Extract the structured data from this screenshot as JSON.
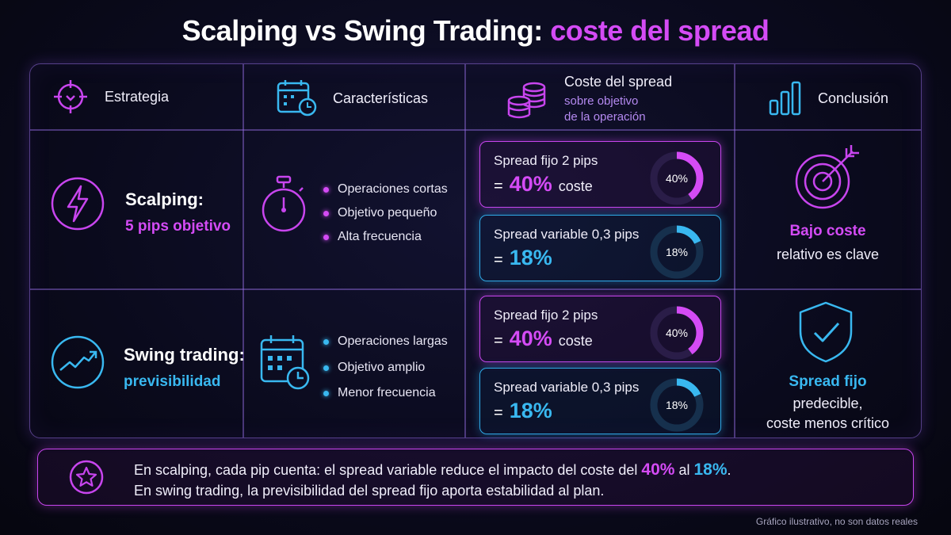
{
  "title": {
    "main": "Scalping vs Swing Trading:",
    "accent": "coste del spread"
  },
  "headers": {
    "strategy": "Estrategia",
    "features": "Características",
    "cost": "Coste del spread",
    "cost_sub1": "sobre objetivo",
    "cost_sub2": "de la operación",
    "conclusion": "Conclusión"
  },
  "rows": [
    {
      "title": "Scalping:",
      "subtitle": "5 pips objetivo",
      "bullets": [
        "Operaciones cortas",
        "Objetivo pequeño",
        "Alta frecuencia"
      ],
      "fixed": {
        "label": "Spread fijo 2 pips",
        "eq": "=",
        "value": "40%",
        "suffix": "coste",
        "donut": "40%",
        "pct": 0.4
      },
      "variable": {
        "label": "Spread variable 0,3 pips",
        "eq": "=",
        "value": "18%",
        "donut": "18%",
        "pct": 0.18
      },
      "conclusion_title": "Bajo coste",
      "conclusion_lines": [
        "relativo es clave"
      ]
    },
    {
      "title": "Swing trading:",
      "subtitle": "previsibilidad",
      "bullets": [
        "Operaciones largas",
        "Objetivo amplio",
        "Menor frecuencia"
      ],
      "fixed": {
        "label": "Spread fijo 2 pips",
        "eq": "=",
        "value": "40%",
        "suffix": "coste",
        "donut": "40%",
        "pct": 0.4
      },
      "variable": {
        "label": "Spread variable 0,3 pips",
        "eq": "=",
        "value": "18%",
        "donut": "18%",
        "pct": 0.18
      },
      "conclusion_title": "Spread fijo",
      "conclusion_lines": [
        "predecible,",
        "coste menos crítico"
      ]
    }
  ],
  "note": {
    "line1_a": "En scalping, cada pip cuenta: el spread variable reduce el impacto del coste del",
    "line1_v1": "40%",
    "line1_b": "al",
    "line1_v2": "18%",
    "line1_c": ".",
    "line2": "En swing trading, la previsibilidad del spread fijo aporta estabilidad al plan."
  },
  "footer": "Gráfico ilustrativo, no son datos reales",
  "colors": {
    "pink": "#d44bf5",
    "cyan": "#39b8f0",
    "border": "#966ee6"
  }
}
